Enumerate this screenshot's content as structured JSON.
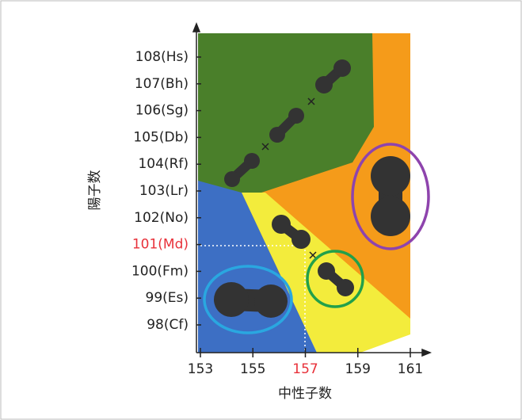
{
  "y_axis": {
    "label": "陽子数",
    "ticks": [
      "108(Hs)",
      "107(Bh)",
      "106(Sg)",
      "105(Db)",
      "104(Rf)",
      "103(Lr)",
      "102(No)",
      "101(Md)",
      "100(Fm)",
      "99(Es)",
      "98(Cf)"
    ]
  },
  "x_axis": {
    "label": "中性子数",
    "ticks": [
      153,
      155,
      157,
      159,
      161
    ]
  }
}
